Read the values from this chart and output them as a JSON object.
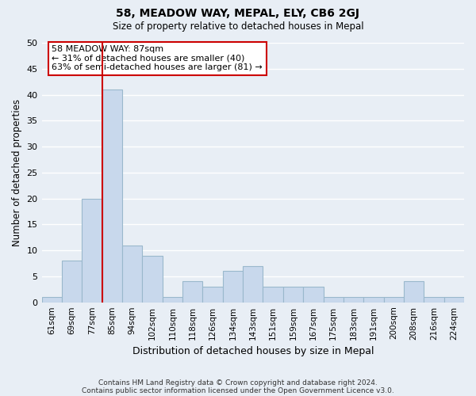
{
  "title": "58, MEADOW WAY, MEPAL, ELY, CB6 2GJ",
  "subtitle": "Size of property relative to detached houses in Mepal",
  "xlabel": "Distribution of detached houses by size in Mepal",
  "ylabel": "Number of detached properties",
  "bar_color": "#c8d8ec",
  "bar_edge_color": "#9ab8cc",
  "background_color": "#e8eef5",
  "grid_color": "#ffffff",
  "bin_labels": [
    "61sqm",
    "69sqm",
    "77sqm",
    "85sqm",
    "94sqm",
    "102sqm",
    "110sqm",
    "118sqm",
    "126sqm",
    "134sqm",
    "143sqm",
    "151sqm",
    "159sqm",
    "167sqm",
    "175sqm",
    "183sqm",
    "191sqm",
    "200sqm",
    "208sqm",
    "216sqm",
    "224sqm"
  ],
  "bar_heights": [
    1,
    8,
    20,
    41,
    11,
    9,
    1,
    4,
    3,
    6,
    7,
    3,
    3,
    3,
    1,
    1,
    1,
    1,
    4,
    1,
    1
  ],
  "ylim": [
    0,
    50
  ],
  "yticks": [
    0,
    5,
    10,
    15,
    20,
    25,
    30,
    35,
    40,
    45,
    50
  ],
  "property_line_bar_index": 3,
  "annotation_title": "58 MEADOW WAY: 87sqm",
  "annotation_line1": "← 31% of detached houses are smaller (40)",
  "annotation_line2": "63% of semi-detached houses are larger (81) →",
  "annotation_box_color": "#ffffff",
  "annotation_box_edge": "#cc0000",
  "vline_color": "#cc0000",
  "footer1": "Contains HM Land Registry data © Crown copyright and database right 2024.",
  "footer2": "Contains public sector information licensed under the Open Government Licence v3.0."
}
